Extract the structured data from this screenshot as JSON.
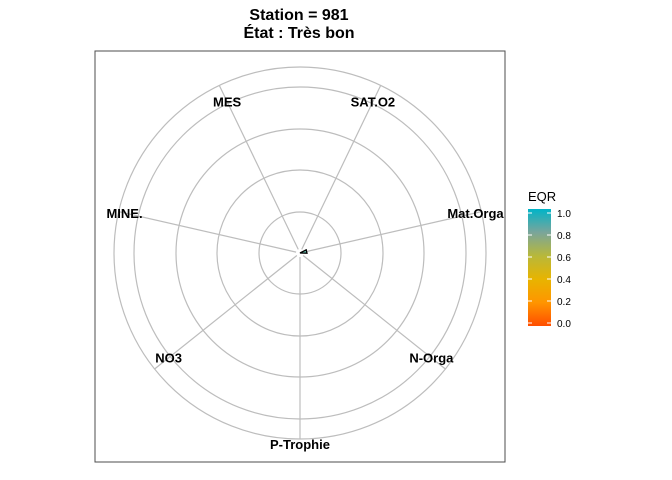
{
  "chart_data": {
    "type": "radar",
    "title": "Station = 981",
    "subtitle": "État : Très bon",
    "axes": [
      "MES",
      "SAT.O2",
      "Mat.Orga",
      "N-Orga",
      "P-Trophie",
      "NO3",
      "MINE."
    ],
    "values": [
      0.0,
      0.0,
      0.02,
      0.0,
      0.0,
      0.0,
      0.0
    ],
    "rlim": [
      0,
      1
    ],
    "grid_rings": 5,
    "grid": true,
    "legend": {
      "title": "EQR",
      "position": "right",
      "ticks": [
        "0.0",
        "0.2",
        "0.4",
        "0.6",
        "0.8",
        "1.0"
      ],
      "gradient_colors": [
        "#ff4d00",
        "#ff9500",
        "#e8b400",
        "#b8b83a",
        "#7aa59a",
        "#00b4c8"
      ]
    },
    "colors": {
      "grid": "#bdbdbd",
      "panel_border": "#4d4d4d",
      "marker_fill": "#66c2b0",
      "marker_stroke": "#000000"
    }
  }
}
